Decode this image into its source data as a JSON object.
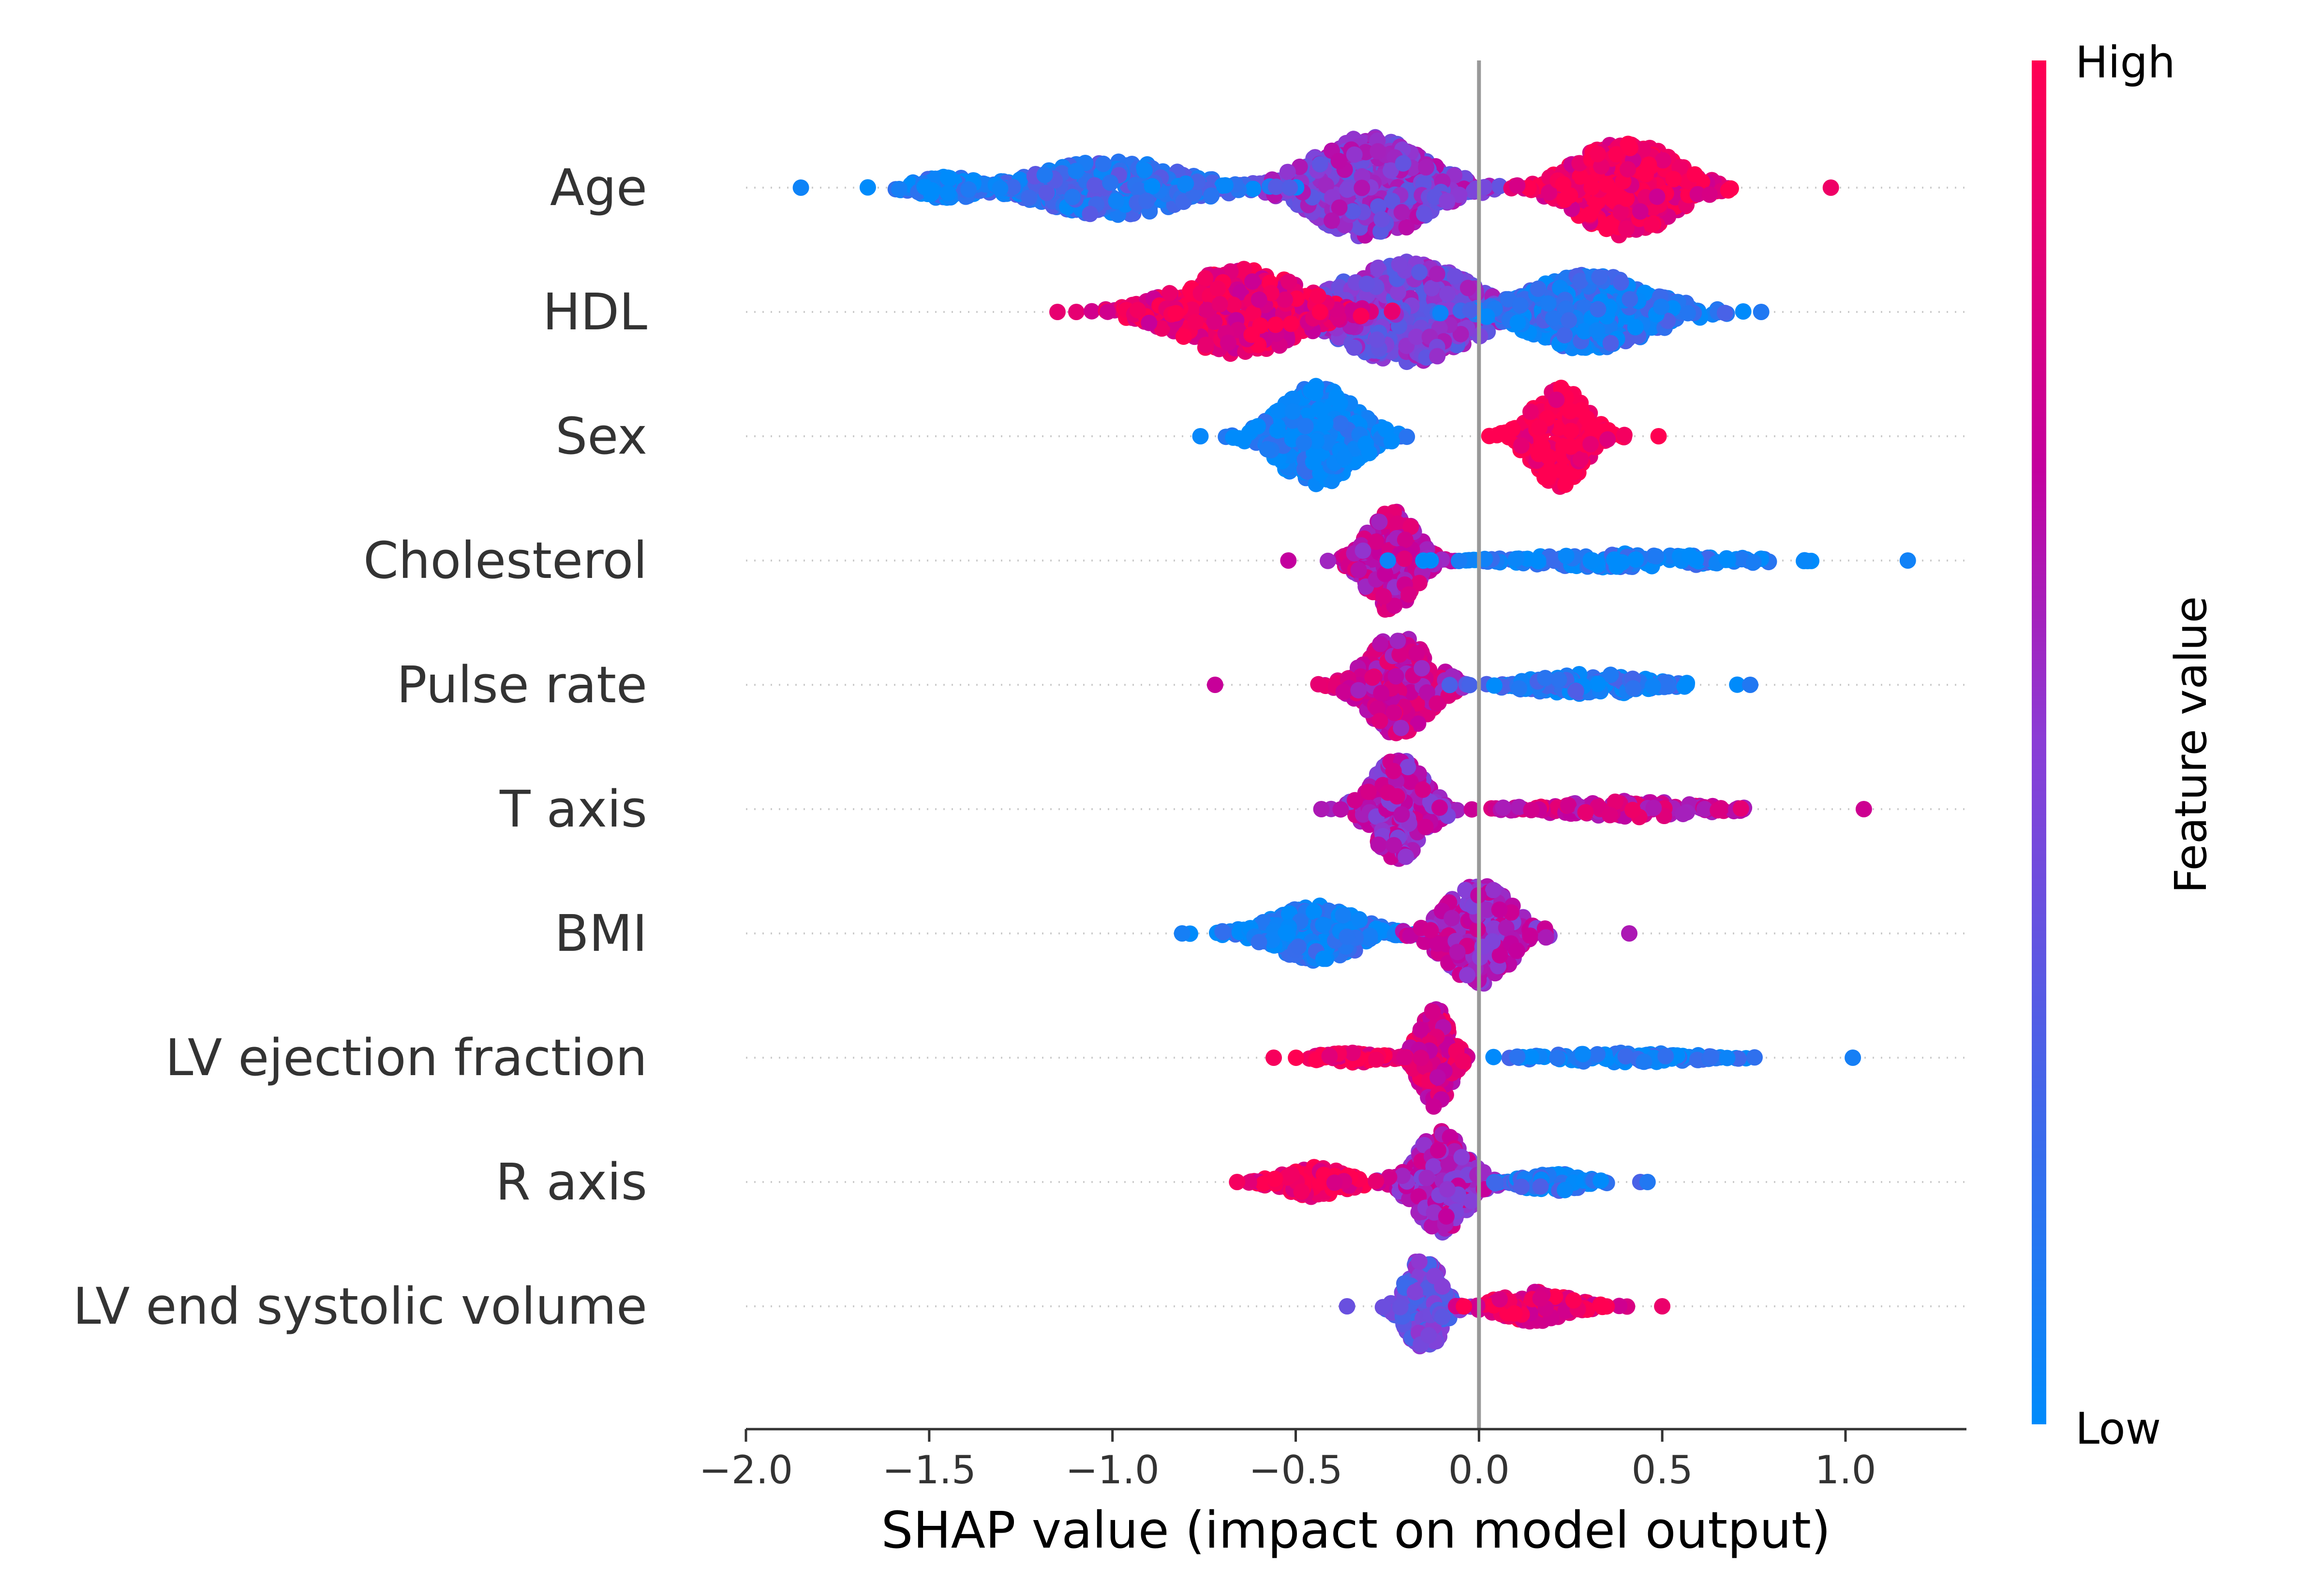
{
  "chart_data": {
    "type": "scatter",
    "subtype": "shap-beeswarm",
    "xlabel": "SHAP value (impact on model output)",
    "xlim": [
      -2.0,
      1.33
    ],
    "xticks": [
      -2.0,
      -1.5,
      -1.0,
      -0.5,
      0.0,
      0.5,
      1.0
    ],
    "xtick_labels": [
      "−2.0",
      "−1.5",
      "−1.0",
      "−0.5",
      "0.0",
      "0.5",
      "1.0"
    ],
    "zero_line": 0.0,
    "grid": false,
    "colorbar": {
      "title": "Feature value",
      "high_label": "High",
      "low_label": "Low",
      "low_color": "#008bfb",
      "high_color": "#ff0052"
    },
    "features": [
      {
        "name": "Age",
        "min": -1.85,
        "max": 0.96,
        "clusters": [
          {
            "center": -0.3,
            "spread": 0.26,
            "height": 1.0,
            "color_value": 0.5
          },
          {
            "center": 0.4,
            "spread": 0.22,
            "height": 0.95,
            "color_value": 0.92
          },
          {
            "center": -1.0,
            "spread": 0.32,
            "height": 0.55,
            "color_value": 0.18
          },
          {
            "center": -1.45,
            "spread": 0.14,
            "height": 0.22,
            "color_value": 0.05
          }
        ]
      },
      {
        "name": "HDL",
        "min": -1.15,
        "max": 0.77,
        "clusters": [
          {
            "center": -0.2,
            "spread": 0.3,
            "height": 1.0,
            "color_value": 0.45
          },
          {
            "center": -0.65,
            "spread": 0.28,
            "height": 0.85,
            "color_value": 0.88
          },
          {
            "center": 0.3,
            "spread": 0.28,
            "height": 0.75,
            "color_value": 0.12
          }
        ]
      },
      {
        "name": "Sex",
        "min": -0.76,
        "max": 0.49,
        "clusters": [
          {
            "center": -0.44,
            "spread": 0.17,
            "height": 1.0,
            "color_value": 0.02
          },
          {
            "center": 0.22,
            "spread": 0.12,
            "height": 1.0,
            "color_value": 1.0
          }
        ]
      },
      {
        "name": "Cholesterol",
        "min": -0.52,
        "max": 1.17,
        "clusters": [
          {
            "center": -0.24,
            "spread": 0.11,
            "height": 1.0,
            "color_value": 0.7
          },
          {
            "center": 0.4,
            "spread": 0.4,
            "height": 0.14,
            "color_value": 0.06
          }
        ]
      },
      {
        "name": "Pulse rate",
        "min": -0.72,
        "max": 0.74,
        "clusters": [
          {
            "center": -0.22,
            "spread": 0.14,
            "height": 1.0,
            "color_value": 0.72
          },
          {
            "center": 0.3,
            "spread": 0.25,
            "height": 0.22,
            "color_value": 0.12
          }
        ]
      },
      {
        "name": "T axis",
        "min": -0.43,
        "max": 1.05,
        "clusters": [
          {
            "center": -0.22,
            "spread": 0.12,
            "height": 1.0,
            "color_value": 0.62
          },
          {
            "center": 0.4,
            "spread": 0.32,
            "height": 0.16,
            "color_value": 0.75
          }
        ]
      },
      {
        "name": "BMI",
        "min": -0.81,
        "max": 0.41,
        "clusters": [
          {
            "center": -0.45,
            "spread": 0.2,
            "height": 0.55,
            "color_value": 0.08
          },
          {
            "center": 0.0,
            "spread": 0.15,
            "height": 1.0,
            "color_value": 0.62
          }
        ]
      },
      {
        "name": "LV ejection fraction",
        "min": -0.56,
        "max": 1.02,
        "clusters": [
          {
            "center": -0.12,
            "spread": 0.07,
            "height": 1.0,
            "color_value": 0.8
          },
          {
            "center": 0.4,
            "spread": 0.32,
            "height": 0.1,
            "color_value": 0.08
          },
          {
            "center": -0.35,
            "spread": 0.14,
            "height": 0.1,
            "color_value": 0.96
          }
        ]
      },
      {
        "name": "R axis",
        "min": -0.66,
        "max": 0.46,
        "clusters": [
          {
            "center": -0.1,
            "spread": 0.12,
            "height": 1.0,
            "color_value": 0.62
          },
          {
            "center": -0.45,
            "spread": 0.14,
            "height": 0.3,
            "color_value": 0.95
          },
          {
            "center": 0.2,
            "spread": 0.14,
            "height": 0.18,
            "color_value": 0.12
          }
        ]
      },
      {
        "name": "LV end systolic volume",
        "min": -0.36,
        "max": 0.5,
        "clusters": [
          {
            "center": -0.15,
            "spread": 0.08,
            "height": 1.0,
            "color_value": 0.38
          },
          {
            "center": 0.15,
            "spread": 0.16,
            "height": 0.3,
            "color_value": 0.9
          }
        ]
      }
    ]
  }
}
